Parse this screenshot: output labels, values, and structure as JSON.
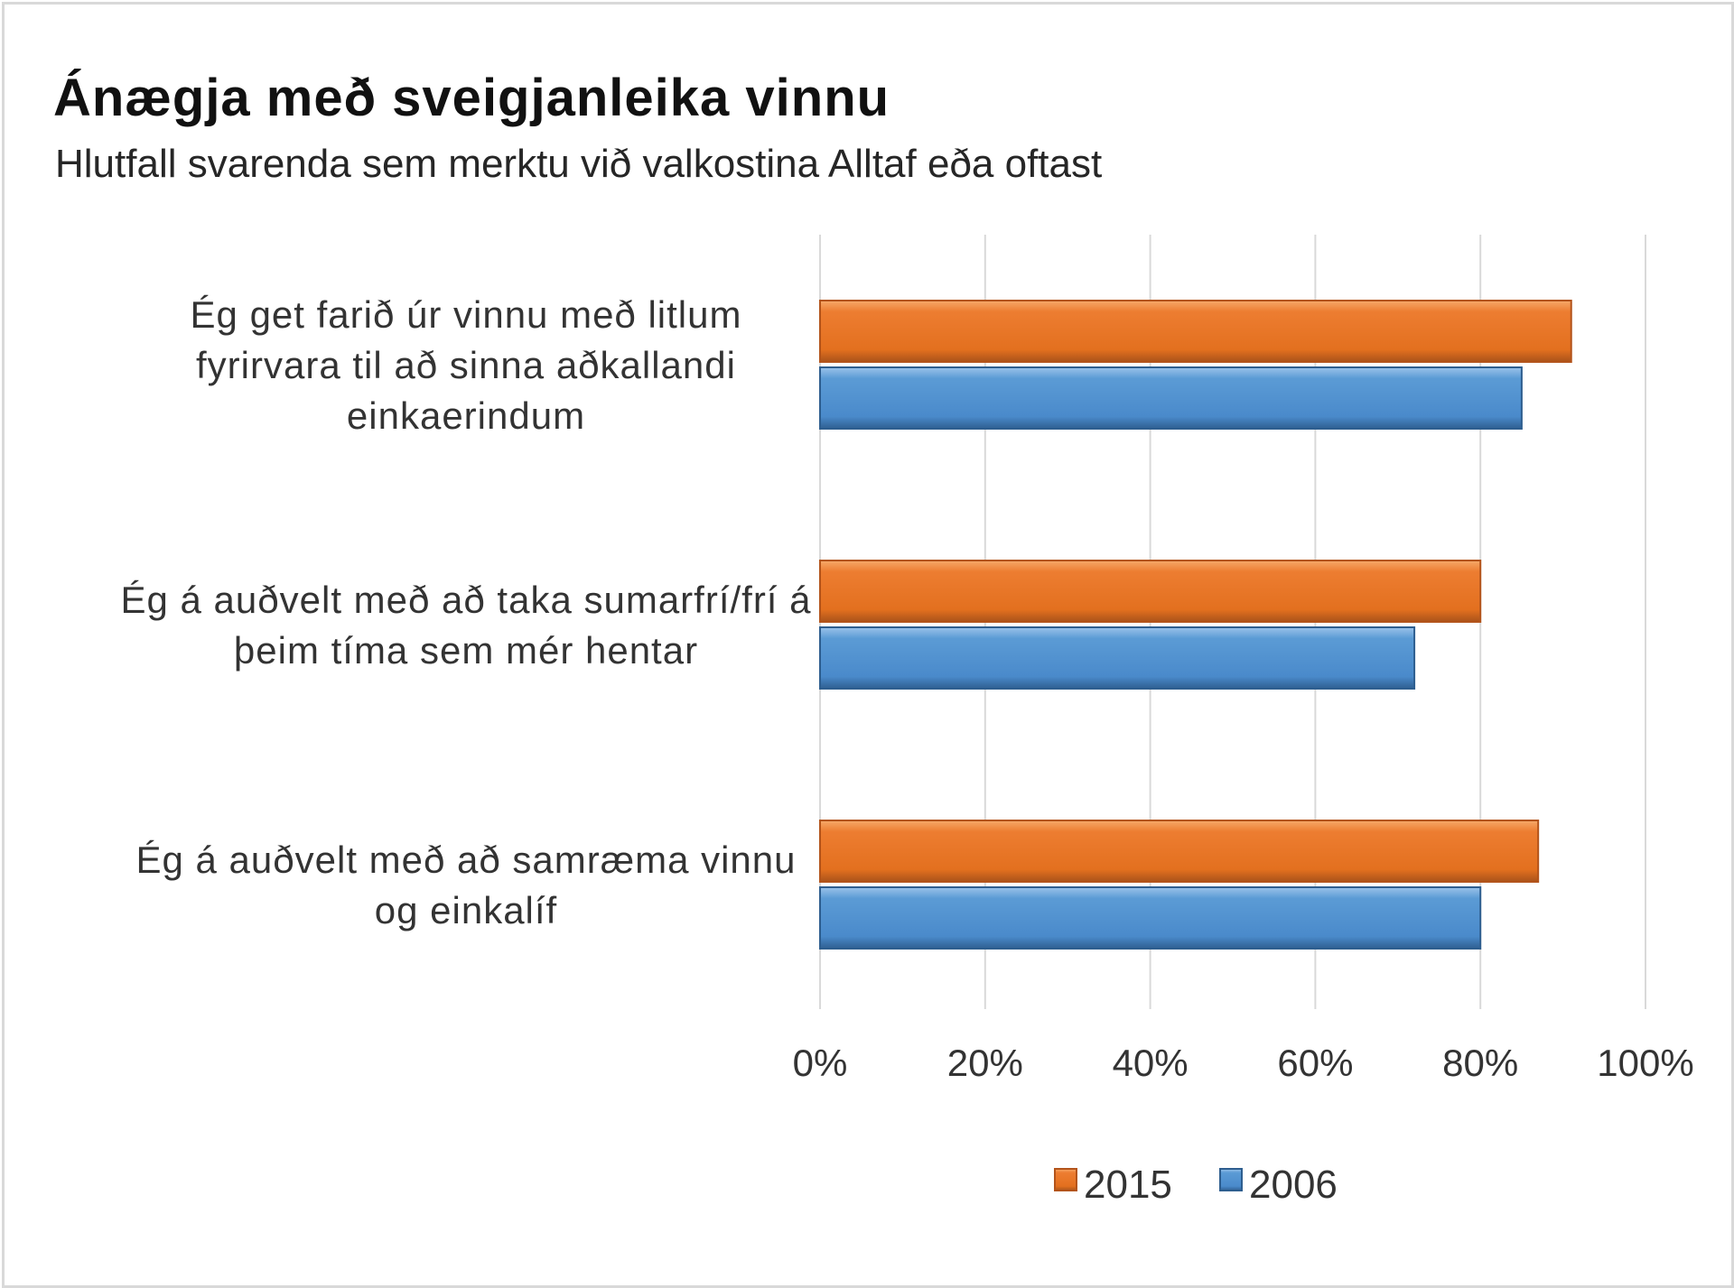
{
  "chart_data": {
    "type": "bar",
    "orientation": "horizontal",
    "title": "Ánægja með sveigjanleika vinnu",
    "subtitle": "Hlutfall svarenda sem merktu við valkostina Alltaf eða oftast",
    "categories": [
      [
        "Ég get farið úr vinnu með litlum",
        "fyrirvara til að sinna aðkallandi",
        "einkaerindum"
      ],
      [
        "Ég á auðvelt með að taka sumarfrí/frí á",
        "þeim tíma sem mér hentar"
      ],
      [
        "Ég á auðvelt með að samræma vinnu",
        "og einkalíf"
      ]
    ],
    "series": [
      {
        "name": "2015",
        "color": "#ed7d31",
        "values": [
          91,
          80,
          87
        ]
      },
      {
        "name": "2006",
        "color": "#5b9bd5",
        "values": [
          85,
          72,
          80
        ]
      }
    ],
    "xlim": [
      0,
      100
    ],
    "x_ticks": [
      "0%",
      "20%",
      "40%",
      "60%",
      "80%",
      "100%"
    ],
    "grid": true,
    "legend_position": "bottom"
  }
}
